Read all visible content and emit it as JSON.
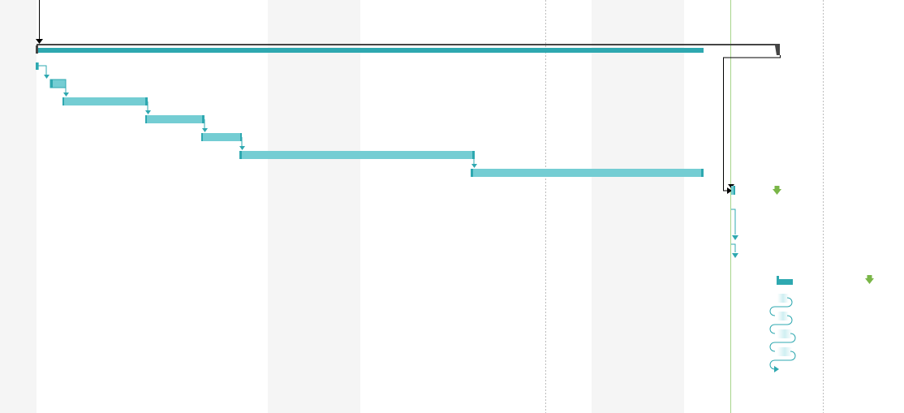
{
  "gantt": {
    "colors": {
      "task_bar": "#74cdd3",
      "task_bar_border": "#2ea8b0",
      "summary_bar": "#2ea8b0",
      "summary_bracket": "#333333",
      "link_arrow": "#2ea8b0",
      "dependency_line": "#000000",
      "today_line": "#a7d58a",
      "milestone": "#7ab648",
      "weekend_shade": "#f5f5f5",
      "gridline": "#bdbdbd"
    },
    "icons": {
      "milestone": "diamond-arrow-icon",
      "link": "arrow-down-icon"
    }
  }
}
